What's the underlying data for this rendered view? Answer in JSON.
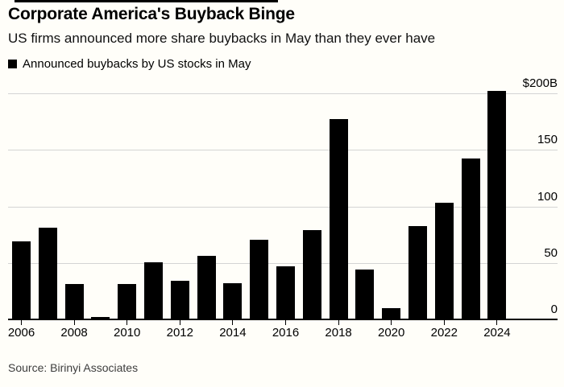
{
  "header": {
    "title": "Corporate America's Buyback Binge",
    "subtitle": "US firms announced more share buybacks in May than they ever have"
  },
  "legend": {
    "label": "Announced buybacks by US stocks in May",
    "swatch_color": "#000000"
  },
  "source": "Source: Birinyi Associates",
  "chart_data": {
    "type": "bar",
    "title": "Announced buybacks by US stocks in May",
    "categories": [
      2006,
      2007,
      2008,
      2009,
      2010,
      2011,
      2012,
      2013,
      2014,
      2015,
      2016,
      2017,
      2018,
      2019,
      2020,
      2021,
      2022,
      2023,
      2024
    ],
    "values": [
      70,
      82,
      32,
      3,
      32,
      51,
      35,
      57,
      33,
      71,
      48,
      80,
      178,
      45,
      11,
      83,
      104,
      143,
      203
    ],
    "unit": "billions of US dollars",
    "xlabel": "",
    "ylabel": "",
    "ylim": [
      0,
      200
    ],
    "y_ticks": [
      200,
      150,
      100,
      50,
      0
    ],
    "y_tick_labels": [
      "$200B",
      "150",
      "100",
      "50",
      "0"
    ],
    "x_tick_labels": [
      "2006",
      "2008",
      "2010",
      "2012",
      "2014",
      "2016",
      "2018",
      "2020",
      "2022",
      "2024"
    ],
    "grid": true,
    "legend_position": "top-left",
    "bar_color": "#000000",
    "grid_color": "#d4d4d4",
    "axis_color": "#000000",
    "background_color": "#fffef9"
  }
}
